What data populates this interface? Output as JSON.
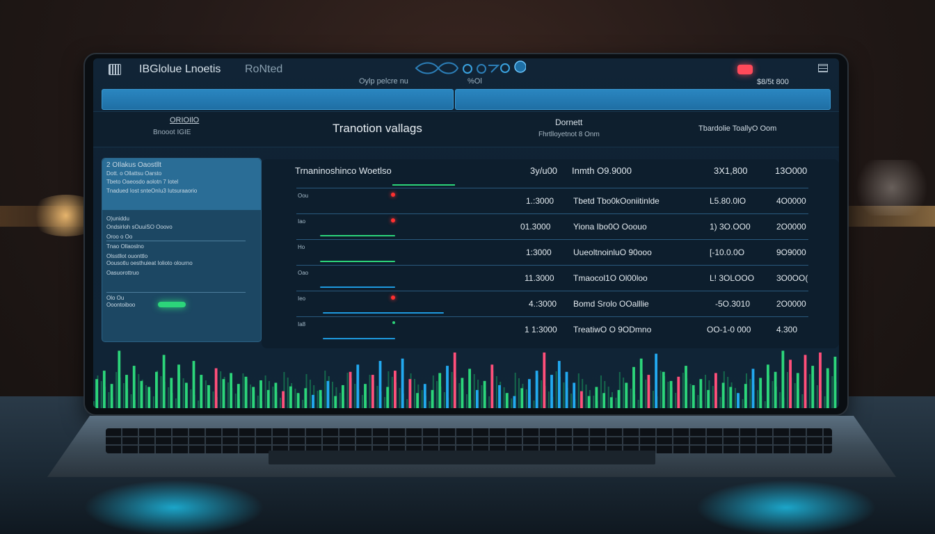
{
  "header": {
    "app_title": "IBGlolue Lnoetis",
    "app_title_accent": "RoNted",
    "center_sub": "Oylp pelcre nu",
    "center_sub_2": "%Ol",
    "amount": "$8/5t 800"
  },
  "info_row": {
    "left_line_1": "ORIOIlO",
    "left_line_2": "Bnooot IGIE",
    "title": "Tranotion vallags",
    "right_title": "Dornett",
    "right_sub": "Fhrtlloyetnot 8 Onm",
    "far_right": "Tbardolie ToallyO Oom"
  },
  "left_panel": {
    "lines": [
      "2 OIlakus Oaostllt",
      "Dott. o  Ollattsu Oarsto",
      "Tbeto Oaeosdo aolotn 7 Iotel",
      "Tnadued Iost snteOnIu3 Iutsuraaorio",
      "O)uniddu",
      "Ondsirloh sOuuiSO Ooovo",
      "Oroo o Oo",
      "Tnao Ollaoslno",
      "Olsstllot ouonttlo",
      "Oousotlu oesthuieat Iolioto olourno",
      "Oasuorottruo",
      "Olo Ou",
      "Ooontoiboo"
    ]
  },
  "table": {
    "header": {
      "col1": "Trnaninoshinco Woetlso",
      "col2": "3y/u00",
      "col3": "Inmth O9.9000",
      "col4": "3X1,800",
      "col5": "13O000"
    },
    "rows": [
      {
        "label": "Oou",
        "dot": "#ff3030",
        "c2": "1.:3000",
        "c3": "Tbetd Tbo0kOoniitinlde",
        "c4": "L5.80.0lO",
        "c5": "4O0000",
        "bar": "#1e9be0"
      },
      {
        "label": "Iao",
        "dot": "#ff3030",
        "c2": "01.3000",
        "c3": "Yiona Ibo0O Ooouo",
        "c4": "1) 3O.OO0",
        "c5": "2O0000",
        "bar": "#2cd57a"
      },
      {
        "label": "Ho",
        "dot": "#2cd57a",
        "c2": "1:3000",
        "c3": "UueoltnoinluO 90ooo",
        "c4": "[-10.0.0O",
        "c5": "9O9000",
        "bar": "#2cd57a"
      },
      {
        "label": "Oao",
        "dot": "#1e9be0",
        "c2": "11.3000",
        "c3": "Tmaocol1O Ol00loo",
        "c4": "L! 3OLOOO",
        "c5": "3O0OO(",
        "bar": "#1e9be0"
      },
      {
        "label": "Ieo",
        "dot": "#ff3030",
        "c2": "4.:3000",
        "c3": "Bomd Srolo OOalllie",
        "c4": "-5O.3010",
        "c5": "2O0000",
        "bar": "#1e9be0"
      },
      {
        "label": "Ia8",
        "dot": "#2cd57a",
        "c2": "1 1:3000",
        "c3": "TreatiwO O 9ODmno",
        "c4": "OO-1-0 000",
        "c5": "4.300",
        "bar": "#1e9be0"
      }
    ]
  },
  "chart_data": {
    "type": "bar",
    "bars": [
      {
        "v": 0.48,
        "c": "g"
      },
      {
        "v": 0.62,
        "c": "g"
      },
      {
        "v": 0.4,
        "c": "g"
      },
      {
        "v": 0.95,
        "c": "g"
      },
      {
        "v": 0.55,
        "c": "g"
      },
      {
        "v": 0.7,
        "c": "g"
      },
      {
        "v": 0.45,
        "c": "g"
      },
      {
        "v": 0.35,
        "c": "g"
      },
      {
        "v": 0.6,
        "c": "g"
      },
      {
        "v": 0.88,
        "c": "g"
      },
      {
        "v": 0.5,
        "c": "g"
      },
      {
        "v": 0.72,
        "c": "g"
      },
      {
        "v": 0.42,
        "c": "g"
      },
      {
        "v": 0.78,
        "c": "g"
      },
      {
        "v": 0.55,
        "c": "g"
      },
      {
        "v": 0.38,
        "c": "g"
      },
      {
        "v": 0.66,
        "c": "r"
      },
      {
        "v": 0.48,
        "c": "g"
      },
      {
        "v": 0.58,
        "c": "g"
      },
      {
        "v": 0.4,
        "c": "g"
      },
      {
        "v": 0.52,
        "c": "g"
      },
      {
        "v": 0.35,
        "c": "g"
      },
      {
        "v": 0.46,
        "c": "g"
      },
      {
        "v": 0.3,
        "c": "g"
      },
      {
        "v": 0.42,
        "c": "g"
      },
      {
        "v": 0.28,
        "c": "r"
      },
      {
        "v": 0.36,
        "c": "g"
      },
      {
        "v": 0.25,
        "c": "g"
      },
      {
        "v": 0.33,
        "c": "g"
      },
      {
        "v": 0.22,
        "c": "b"
      },
      {
        "v": 0.3,
        "c": "g"
      },
      {
        "v": 0.45,
        "c": "b"
      },
      {
        "v": 0.2,
        "c": "g"
      },
      {
        "v": 0.38,
        "c": "g"
      },
      {
        "v": 0.6,
        "c": "r"
      },
      {
        "v": 0.72,
        "c": "b"
      },
      {
        "v": 0.4,
        "c": "g"
      },
      {
        "v": 0.55,
        "c": "r"
      },
      {
        "v": 0.78,
        "c": "b"
      },
      {
        "v": 0.35,
        "c": "g"
      },
      {
        "v": 0.62,
        "c": "r"
      },
      {
        "v": 0.82,
        "c": "b"
      },
      {
        "v": 0.48,
        "c": "r"
      },
      {
        "v": 0.25,
        "c": "g"
      },
      {
        "v": 0.4,
        "c": "b"
      },
      {
        "v": 0.3,
        "c": "g"
      },
      {
        "v": 0.58,
        "c": "g"
      },
      {
        "v": 0.7,
        "c": "b"
      },
      {
        "v": 0.92,
        "c": "r"
      },
      {
        "v": 0.5,
        "c": "g"
      },
      {
        "v": 0.65,
        "c": "g"
      },
      {
        "v": 0.3,
        "c": "b"
      },
      {
        "v": 0.45,
        "c": "g"
      },
      {
        "v": 0.72,
        "c": "r"
      },
      {
        "v": 0.38,
        "c": "b"
      },
      {
        "v": 0.25,
        "c": "g"
      },
      {
        "v": 0.2,
        "c": "b"
      },
      {
        "v": 0.33,
        "c": "g"
      },
      {
        "v": 0.48,
        "c": "b"
      },
      {
        "v": 0.62,
        "c": "b"
      },
      {
        "v": 0.92,
        "c": "r"
      },
      {
        "v": 0.55,
        "c": "b"
      },
      {
        "v": 0.78,
        "c": "b"
      },
      {
        "v": 0.6,
        "c": "b"
      },
      {
        "v": 0.42,
        "c": "b"
      },
      {
        "v": 0.28,
        "c": "r"
      },
      {
        "v": 0.2,
        "c": "g"
      },
      {
        "v": 0.35,
        "c": "g"
      },
      {
        "v": 0.25,
        "c": "g"
      },
      {
        "v": 0.18,
        "c": "g"
      },
      {
        "v": 0.3,
        "c": "g"
      },
      {
        "v": 0.42,
        "c": "g"
      },
      {
        "v": 0.68,
        "c": "g"
      },
      {
        "v": 0.82,
        "c": "g"
      },
      {
        "v": 0.55,
        "c": "r"
      },
      {
        "v": 0.9,
        "c": "b"
      },
      {
        "v": 0.6,
        "c": "g"
      },
      {
        "v": 0.45,
        "c": "g"
      },
      {
        "v": 0.52,
        "c": "r"
      },
      {
        "v": 0.7,
        "c": "g"
      },
      {
        "v": 0.38,
        "c": "g"
      },
      {
        "v": 0.48,
        "c": "g"
      },
      {
        "v": 0.3,
        "c": "g"
      },
      {
        "v": 0.58,
        "c": "r"
      },
      {
        "v": 0.42,
        "c": "g"
      },
      {
        "v": 0.35,
        "c": "g"
      },
      {
        "v": 0.25,
        "c": "b"
      },
      {
        "v": 0.4,
        "c": "g"
      },
      {
        "v": 0.65,
        "c": "b"
      },
      {
        "v": 0.5,
        "c": "g"
      },
      {
        "v": 0.72,
        "c": "g"
      },
      {
        "v": 0.6,
        "c": "g"
      },
      {
        "v": 0.95,
        "c": "g"
      },
      {
        "v": 0.8,
        "c": "r"
      },
      {
        "v": 0.58,
        "c": "g"
      },
      {
        "v": 0.88,
        "c": "r"
      },
      {
        "v": 0.7,
        "c": "g"
      },
      {
        "v": 0.92,
        "c": "r"
      },
      {
        "v": 0.66,
        "c": "g"
      },
      {
        "v": 0.85,
        "c": "g"
      }
    ]
  }
}
